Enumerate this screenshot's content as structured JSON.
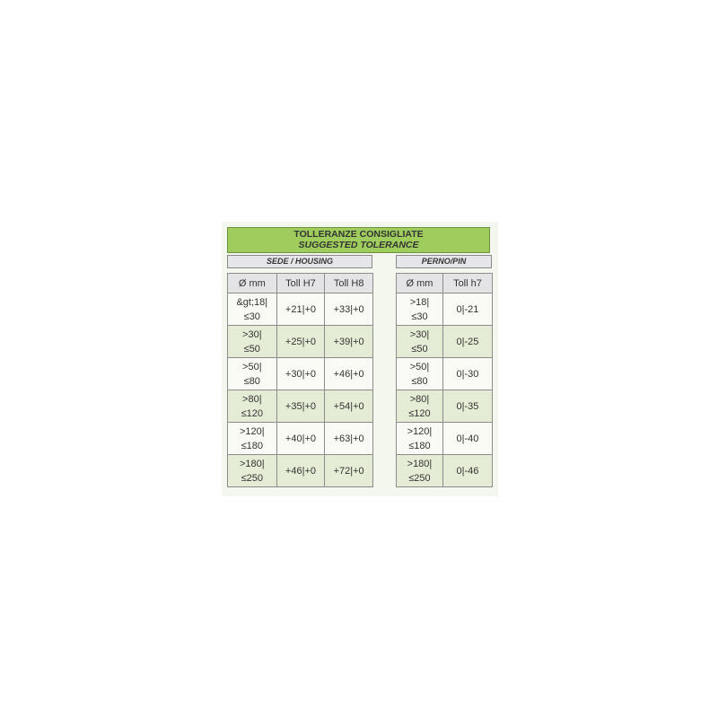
{
  "title": {
    "line1": "TOLLERANZE CONSIGLIATE",
    "line2": "SUGGESTED TOLERANCE"
  },
  "housing": {
    "label": "SEDE / HOUSING",
    "headers": [
      "Ø mm",
      "Toll H7",
      "Toll H8"
    ],
    "rows": [
      [
        "&gt;18|≤30",
        "+21|+0",
        "+33|+0"
      ],
      [
        ">30|≤50",
        "+25|+0",
        "+39|+0"
      ],
      [
        ">50|≤80",
        "+30|+0",
        "+46|+0"
      ],
      [
        ">80|≤120",
        "+35|+0",
        "+54|+0"
      ],
      [
        ">120|≤180",
        "+40|+0",
        "+63|+0"
      ],
      [
        ">180|≤250",
        "+46|+0",
        "+72|+0"
      ]
    ]
  },
  "pin": {
    "label": "PERNO/PIN",
    "headers": [
      "Ø mm",
      "Toll h7"
    ],
    "rows": [
      [
        ">18|≤30",
        "0|-21"
      ],
      [
        ">30|≤50",
        "0|-25"
      ],
      [
        ">50|≤80",
        "0|-30"
      ],
      [
        ">80|≤120",
        "0|-35"
      ],
      [
        ">120|≤180",
        "0|-40"
      ],
      [
        ">180|≤250",
        "0|-46"
      ]
    ]
  },
  "colors": {
    "title_bg": "#9fcd5d",
    "row_alt": "#e4ecd6",
    "header_bg": "#e4e4e7"
  }
}
